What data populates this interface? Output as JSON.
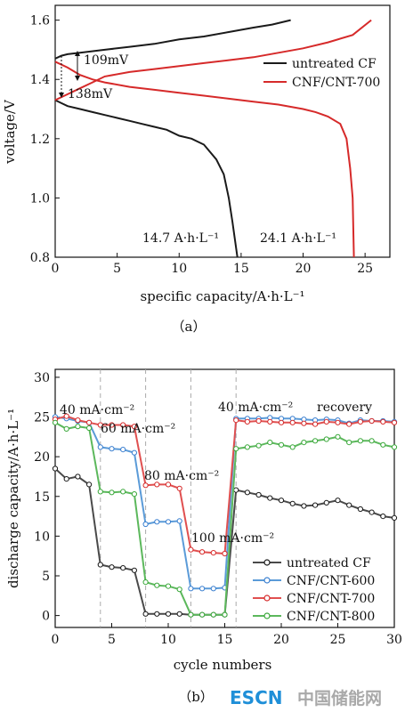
{
  "chart_data": [
    {
      "type": "line",
      "panel_label": "（a）",
      "xlabel": "specific capacity/A·h·L⁻¹",
      "ylabel": "voltage/V",
      "xlim": [
        0,
        27
      ],
      "ylim": [
        0.8,
        1.65
      ],
      "xticks": [
        0,
        5,
        10,
        15,
        20,
        25
      ],
      "yticks": [
        0.8,
        1.0,
        1.2,
        1.4,
        1.6
      ],
      "legend_position": "upper-right",
      "series": [
        {
          "name": "untreated CF",
          "color": "#1a1a1a",
          "charge": [
            [
              0,
              1.47
            ],
            [
              0.5,
              1.48
            ],
            [
              1,
              1.485
            ],
            [
              2,
              1.49
            ],
            [
              4,
              1.5
            ],
            [
              6,
              1.51
            ],
            [
              8,
              1.52
            ],
            [
              10,
              1.535
            ],
            [
              12,
              1.545
            ],
            [
              14,
              1.56
            ],
            [
              16,
              1.575
            ],
            [
              17.5,
              1.585
            ],
            [
              19,
              1.6
            ]
          ],
          "discharge": [
            [
              0,
              1.33
            ],
            [
              0.5,
              1.32
            ],
            [
              1,
              1.31
            ],
            [
              2,
              1.3
            ],
            [
              3,
              1.29
            ],
            [
              4,
              1.28
            ],
            [
              5,
              1.27
            ],
            [
              6,
              1.26
            ],
            [
              7,
              1.25
            ],
            [
              8,
              1.24
            ],
            [
              9,
              1.23
            ],
            [
              10,
              1.21
            ],
            [
              11,
              1.2
            ],
            [
              12,
              1.18
            ],
            [
              13,
              1.13
            ],
            [
              13.6,
              1.08
            ],
            [
              14.0,
              1.0
            ],
            [
              14.3,
              0.92
            ],
            [
              14.5,
              0.86
            ],
            [
              14.7,
              0.8
            ]
          ]
        },
        {
          "name": "CNF/CNT-700",
          "color": "#d62a2a",
          "charge": [
            [
              0,
              1.33
            ],
            [
              1,
              1.35
            ],
            [
              2,
              1.37
            ],
            [
              3,
              1.39
            ],
            [
              4,
              1.41
            ],
            [
              6,
              1.425
            ],
            [
              8,
              1.435
            ],
            [
              10,
              1.445
            ],
            [
              12,
              1.455
            ],
            [
              14,
              1.465
            ],
            [
              16,
              1.475
            ],
            [
              18,
              1.49
            ],
            [
              20,
              1.505
            ],
            [
              22,
              1.525
            ],
            [
              24,
              1.55
            ],
            [
              25.5,
              1.6
            ]
          ],
          "discharge": [
            [
              0,
              1.46
            ],
            [
              1,
              1.44
            ],
            [
              2,
              1.415
            ],
            [
              3,
              1.4
            ],
            [
              4,
              1.39
            ],
            [
              6,
              1.375
            ],
            [
              8,
              1.365
            ],
            [
              10,
              1.355
            ],
            [
              12,
              1.345
            ],
            [
              14,
              1.335
            ],
            [
              16,
              1.325
            ],
            [
              18,
              1.315
            ],
            [
              20,
              1.3
            ],
            [
              21,
              1.29
            ],
            [
              22,
              1.275
            ],
            [
              23,
              1.25
            ],
            [
              23.5,
              1.2
            ],
            [
              23.8,
              1.1
            ],
            [
              24.0,
              1.0
            ],
            [
              24.05,
              0.9
            ],
            [
              24.1,
              0.8
            ]
          ]
        }
      ],
      "annotations": [
        {
          "text": "109mV"
        },
        {
          "text": "138mV"
        },
        {
          "text": "14.7 A·h·L⁻¹"
        },
        {
          "text": "24.1 A·h·L⁻¹"
        }
      ]
    },
    {
      "type": "line",
      "panel_label": "（b）",
      "xlabel": "cycle numbers",
      "ylabel": "discharge capacity/A·h·L⁻¹",
      "xlim": [
        0,
        30
      ],
      "ylim": [
        -1.5,
        31
      ],
      "xticks": [
        0,
        5,
        10,
        15,
        20,
        25,
        30
      ],
      "yticks": [
        0,
        5,
        10,
        15,
        20,
        25,
        30
      ],
      "vlines": [
        4,
        8,
        12,
        16
      ],
      "legend_position": "lower-right",
      "series": [
        {
          "name": "untreated CF",
          "color": "#1a1a1a",
          "line": "#4a4a4a",
          "values": [
            [
              0,
              18.5
            ],
            [
              1,
              17.2
            ],
            [
              2,
              17.5
            ],
            [
              3,
              16.5
            ],
            [
              4,
              6.4
            ],
            [
              5,
              6.1
            ],
            [
              6,
              6.0
            ],
            [
              7,
              5.7
            ],
            [
              8,
              0.2
            ],
            [
              9,
              0.2
            ],
            [
              10,
              0.2
            ],
            [
              11,
              0.2
            ],
            [
              12,
              0.1
            ],
            [
              13,
              0.1
            ],
            [
              14,
              0.1
            ],
            [
              15,
              0.1
            ],
            [
              16,
              15.8
            ],
            [
              17,
              15.5
            ],
            [
              18,
              15.2
            ],
            [
              19,
              14.8
            ],
            [
              20,
              14.5
            ],
            [
              21,
              14.1
            ],
            [
              22,
              13.8
            ],
            [
              23,
              13.9
            ],
            [
              24,
              14.2
            ],
            [
              25,
              14.5
            ],
            [
              26,
              13.9
            ],
            [
              27,
              13.4
            ],
            [
              28,
              13.0
            ],
            [
              29,
              12.5
            ],
            [
              30,
              12.3
            ]
          ]
        },
        {
          "name": "CNF/CNT-600",
          "color": "#3a7fd0",
          "line": "#5b9bd8",
          "values": [
            [
              0,
              25.0
            ],
            [
              1,
              24.8
            ],
            [
              2,
              24.5
            ],
            [
              3,
              24.3
            ],
            [
              4,
              21.2
            ],
            [
              5,
              21.0
            ],
            [
              6,
              20.9
            ],
            [
              7,
              20.5
            ],
            [
              8,
              11.5
            ],
            [
              9,
              11.8
            ],
            [
              10,
              11.8
            ],
            [
              11,
              11.9
            ],
            [
              12,
              3.4
            ],
            [
              13,
              3.4
            ],
            [
              14,
              3.4
            ],
            [
              15,
              3.5
            ],
            [
              16,
              24.8
            ],
            [
              17,
              24.8
            ],
            [
              18,
              24.8
            ],
            [
              19,
              24.9
            ],
            [
              20,
              24.8
            ],
            [
              21,
              24.8
            ],
            [
              22,
              24.7
            ],
            [
              23,
              24.6
            ],
            [
              24,
              24.7
            ],
            [
              25,
              24.6
            ],
            [
              26,
              24.2
            ],
            [
              27,
              24.6
            ],
            [
              28,
              24.5
            ],
            [
              29,
              24.5
            ],
            [
              30,
              24.4
            ]
          ]
        },
        {
          "name": "CNF/CNT-700",
          "color": "#d62a2a",
          "line": "#e05050",
          "values": [
            [
              0,
              24.7
            ],
            [
              1,
              25.1
            ],
            [
              2,
              24.6
            ],
            [
              3,
              24.3
            ],
            [
              4,
              24.0
            ],
            [
              5,
              24.0
            ],
            [
              6,
              24.0
            ],
            [
              7,
              23.8
            ],
            [
              8,
              16.4
            ],
            [
              9,
              16.5
            ],
            [
              10,
              16.5
            ],
            [
              11,
              16.0
            ],
            [
              12,
              8.3
            ],
            [
              13,
              8.0
            ],
            [
              14,
              7.9
            ],
            [
              15,
              7.8
            ],
            [
              16,
              24.6
            ],
            [
              17,
              24.4
            ],
            [
              18,
              24.5
            ],
            [
              19,
              24.4
            ],
            [
              20,
              24.3
            ],
            [
              21,
              24.3
            ],
            [
              22,
              24.2
            ],
            [
              23,
              24.1
            ],
            [
              24,
              24.4
            ],
            [
              25,
              24.3
            ],
            [
              26,
              24.1
            ],
            [
              27,
              24.4
            ],
            [
              28,
              24.5
            ],
            [
              29,
              24.4
            ],
            [
              30,
              24.3
            ]
          ]
        },
        {
          "name": "CNF/CNT-800",
          "color": "#3aa83a",
          "line": "#5cb85c",
          "values": [
            [
              0,
              24.3
            ],
            [
              1,
              23.5
            ],
            [
              2,
              23.8
            ],
            [
              3,
              23.6
            ],
            [
              4,
              15.6
            ],
            [
              5,
              15.5
            ],
            [
              6,
              15.6
            ],
            [
              7,
              15.3
            ],
            [
              8,
              4.2
            ],
            [
              9,
              3.8
            ],
            [
              10,
              3.7
            ],
            [
              11,
              3.3
            ],
            [
              12,
              0.1
            ],
            [
              13,
              0.1
            ],
            [
              14,
              0.1
            ],
            [
              15,
              0.1
            ],
            [
              16,
              21.0
            ],
            [
              17,
              21.2
            ],
            [
              18,
              21.4
            ],
            [
              19,
              21.8
            ],
            [
              20,
              21.5
            ],
            [
              21,
              21.2
            ],
            [
              22,
              21.8
            ],
            [
              23,
              22.0
            ],
            [
              24,
              22.2
            ],
            [
              25,
              22.5
            ],
            [
              26,
              21.8
            ],
            [
              27,
              22.0
            ],
            [
              28,
              22.0
            ],
            [
              29,
              21.5
            ],
            [
              30,
              21.2
            ]
          ]
        }
      ],
      "annotations": [
        {
          "text": "40 mA·cm⁻²"
        },
        {
          "text": "60 mA·cm⁻²"
        },
        {
          "text": "80 mA·cm⁻²"
        },
        {
          "text": "100 mA·cm⁻²"
        },
        {
          "text": "40 mA·cm⁻²"
        },
        {
          "text": "recovery"
        }
      ]
    }
  ],
  "watermark": {
    "brand": "ESCN",
    "text": "中国储能网"
  }
}
